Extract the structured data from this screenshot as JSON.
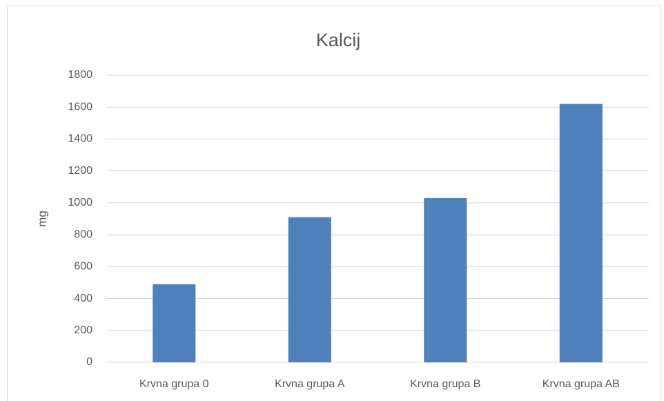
{
  "chart_data": {
    "type": "bar",
    "title": "Kalcij",
    "y_label": "mg",
    "categories": [
      "Krvna grupa 0",
      "Krvna grupa A",
      "Krvna grupa B",
      "Krvna grupa AB"
    ],
    "values": [
      490,
      910,
      1030,
      1620
    ],
    "color": "#4f81bd",
    "ylim": [
      0,
      1800
    ],
    "yticks": [
      0,
      200,
      400,
      600,
      800,
      1000,
      1200,
      1400,
      1600,
      1800
    ],
    "grid": true
  }
}
